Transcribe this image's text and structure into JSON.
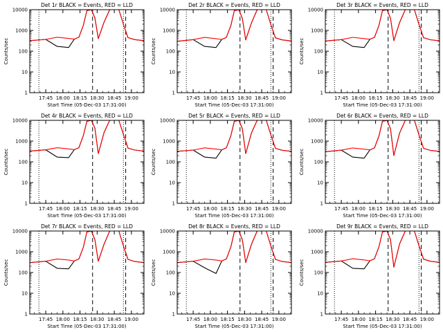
{
  "chart_data": {
    "type": "line",
    "panel_count": 9,
    "layout": "3x3 grid",
    "y_scale": "log",
    "ylim": [
      1,
      10000
    ],
    "y_ticks": [
      "1",
      "10",
      "100",
      "1000",
      "10000"
    ],
    "ylabel": "Counts/sec",
    "xlabel": "Start Time (05-Dec-03 17:31:00)",
    "x_ticks": [
      "17:45",
      "18:00",
      "18:15",
      "18:30",
      "18:45",
      "19:00"
    ],
    "xlim": [
      "17:31",
      "19:11"
    ],
    "series_colors": {
      "events": "#000000",
      "lld": "#ff0000"
    },
    "vertical_markers": [
      {
        "time": "17:39",
        "style": "dotted"
      },
      {
        "time": "18:26",
        "style": "dashed"
      },
      {
        "time": "18:53",
        "style": "dotted"
      },
      {
        "time": "18:55",
        "style": "dashed"
      }
    ],
    "shared_x": [
      "17:31",
      "17:45",
      "17:55",
      "18:05",
      "18:10",
      "18:14",
      "18:18",
      "18:21",
      "18:25",
      "18:28",
      "18:31",
      "18:36",
      "18:41",
      "18:46",
      "18:49",
      "18:53",
      "18:57",
      "19:03",
      "19:11"
    ],
    "panels": [
      {
        "title": "Det 1r BLACK = Events, RED = LLD",
        "series": [
          {
            "values": [
              320,
              370,
              170,
              150,
              380,
              470,
              1800,
              9000,
              10000,
              4000,
              400,
              2500,
              10000,
              10000,
              10000,
              2000,
              450,
              360,
              320
            ]
          },
          {
            "values": [
              320,
              370,
              470,
              410,
              380,
              470,
              1800,
              9000,
              10000,
              4000,
              400,
              2500,
              10000,
              10000,
              10000,
              2000,
              450,
              360,
              320
            ]
          }
        ]
      },
      {
        "title": "Det 2r BLACK = Events, RED = LLD",
        "series": [
          {
            "values": [
              300,
              360,
              170,
              150,
              370,
              460,
              1700,
              9000,
              10000,
              3800,
              350,
              2300,
              10000,
              10000,
              10000,
              1900,
              440,
              350,
              310
            ]
          },
          {
            "values": [
              300,
              360,
              460,
              400,
              370,
              460,
              1700,
              9000,
              10000,
              3800,
              350,
              2300,
              10000,
              10000,
              10000,
              1900,
              440,
              350,
              310
            ]
          }
        ]
      },
      {
        "title": "Det 3r BLACK = Events, RED = LLD",
        "series": [
          {
            "values": [
              310,
              360,
              170,
              150,
              375,
              465,
              1750,
              9000,
              10000,
              3900,
              320,
              2400,
              10000,
              10000,
              10000,
              1950,
              445,
              355,
              315
            ]
          },
          {
            "values": [
              310,
              360,
              465,
              405,
              375,
              465,
              1750,
              9000,
              10000,
              3900,
              320,
              2400,
              10000,
              10000,
              10000,
              1950,
              445,
              355,
              315
            ]
          }
        ]
      },
      {
        "title": "Det 4r BLACK = Events, RED = LLD",
        "series": [
          {
            "values": [
              330,
              380,
              170,
              160,
              390,
              480,
              1900,
              9000,
              10000,
              4200,
              250,
              2600,
              10000,
              10000,
              10000,
              2100,
              460,
              370,
              330
            ]
          },
          {
            "values": [
              330,
              380,
              480,
              420,
              390,
              480,
              1900,
              9000,
              10000,
              4200,
              250,
              2600,
              10000,
              10000,
              10000,
              2100,
              460,
              370,
              330
            ]
          }
        ]
      },
      {
        "title": "Det 5r BLACK = Events, RED = LLD",
        "series": [
          {
            "values": [
              320,
              370,
              170,
              150,
              380,
              470,
              1800,
              9000,
              10000,
              4000,
              250,
              2500,
              10000,
              10000,
              10000,
              2000,
              450,
              360,
              320
            ]
          },
          {
            "values": [
              320,
              370,
              470,
              410,
              380,
              470,
              1800,
              9000,
              10000,
              4000,
              250,
              2500,
              10000,
              10000,
              10000,
              2000,
              450,
              360,
              320
            ]
          }
        ]
      },
      {
        "title": "Det 6r BLACK = Events, RED = LLD",
        "series": [
          {
            "values": [
              310,
              365,
              170,
              150,
              378,
              468,
              1780,
              9000,
              10000,
              3950,
              200,
              2450,
              10000,
              10000,
              10000,
              1980,
              448,
              358,
              318
            ]
          },
          {
            "values": [
              310,
              365,
              468,
              408,
              378,
              468,
              1780,
              9000,
              10000,
              3950,
              200,
              2450,
              10000,
              10000,
              10000,
              1980,
              448,
              358,
              318
            ]
          }
        ]
      },
      {
        "title": "Det 7r BLACK = Events, RED = LLD",
        "series": [
          {
            "values": [
              300,
              350,
              160,
              150,
              360,
              450,
              1700,
              9000,
              10000,
              3800,
              350,
              2300,
              10000,
              10000,
              10000,
              1900,
              430,
              340,
              300
            ]
          },
          {
            "values": [
              300,
              350,
              450,
              400,
              360,
              450,
              1700,
              9000,
              10000,
              3800,
              350,
              2300,
              10000,
              10000,
              10000,
              1900,
              430,
              340,
              300
            ]
          }
        ]
      },
      {
        "title": "Det 8r BLACK = Events, RED = LLD",
        "series": [
          {
            "values": [
              300,
              350,
              170,
              90,
              360,
              450,
              1700,
              9000,
              10000,
              3800,
              300,
              2300,
              10000,
              10000,
              10000,
              1900,
              430,
              340,
              300
            ]
          },
          {
            "values": [
              300,
              350,
              450,
              400,
              360,
              450,
              1700,
              9000,
              10000,
              3800,
              300,
              2300,
              10000,
              10000,
              10000,
              1900,
              430,
              340,
              300
            ]
          }
        ]
      },
      {
        "title": "Det 9r BLACK = Events, RED = LLD",
        "series": [
          {
            "values": [
              310,
              360,
              160,
              150,
              370,
              460,
              1750,
              9000,
              10000,
              3900,
              180,
              2400,
              10000,
              10000,
              10000,
              1950,
              440,
              350,
              310
            ]
          },
          {
            "values": [
              310,
              360,
              460,
              405,
              370,
              460,
              1750,
              9000,
              10000,
              3900,
              180,
              2400,
              10000,
              10000,
              10000,
              1950,
              440,
              350,
              310
            ]
          }
        ]
      }
    ]
  }
}
